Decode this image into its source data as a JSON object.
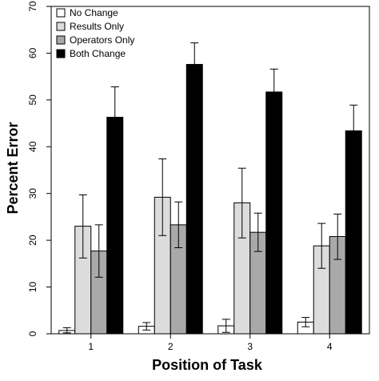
{
  "chart_data": {
    "type": "bar",
    "xlabel": "Position of Task",
    "ylabel": "Percent Error",
    "ylim": [
      0,
      70
    ],
    "yticks": [
      0,
      10,
      20,
      30,
      40,
      50,
      60,
      70
    ],
    "categories": [
      "1",
      "2",
      "3",
      "4"
    ],
    "grid": false,
    "legend_position": "top-left",
    "series": [
      {
        "name": "No Change",
        "color": "#ffffff",
        "values": [
          0.7,
          1.6,
          1.7,
          2.5
        ],
        "err_low": [
          0.2,
          0.8,
          0.3,
          1.5
        ],
        "err_high": [
          1.3,
          2.4,
          3.1,
          3.5
        ]
      },
      {
        "name": "Results Only",
        "color": "#dcdcdc",
        "values": [
          23.0,
          29.2,
          28.0,
          18.8
        ],
        "err_low": [
          16.2,
          21.0,
          20.5,
          14.0
        ],
        "err_high": [
          29.7,
          37.4,
          35.4,
          23.6
        ]
      },
      {
        "name": "Operators Only",
        "color": "#a9a9a9",
        "values": [
          17.7,
          23.3,
          21.7,
          20.8
        ],
        "err_low": [
          12.1,
          18.4,
          17.6,
          15.9
        ],
        "err_high": [
          23.3,
          28.2,
          25.8,
          25.6
        ]
      },
      {
        "name": "Both Change",
        "color": "#000000",
        "values": [
          46.3,
          57.6,
          51.7,
          43.4
        ],
        "err_low": [
          39.7,
          52.9,
          46.8,
          37.9
        ],
        "err_high": [
          52.8,
          62.2,
          56.6,
          48.9
        ]
      }
    ]
  }
}
